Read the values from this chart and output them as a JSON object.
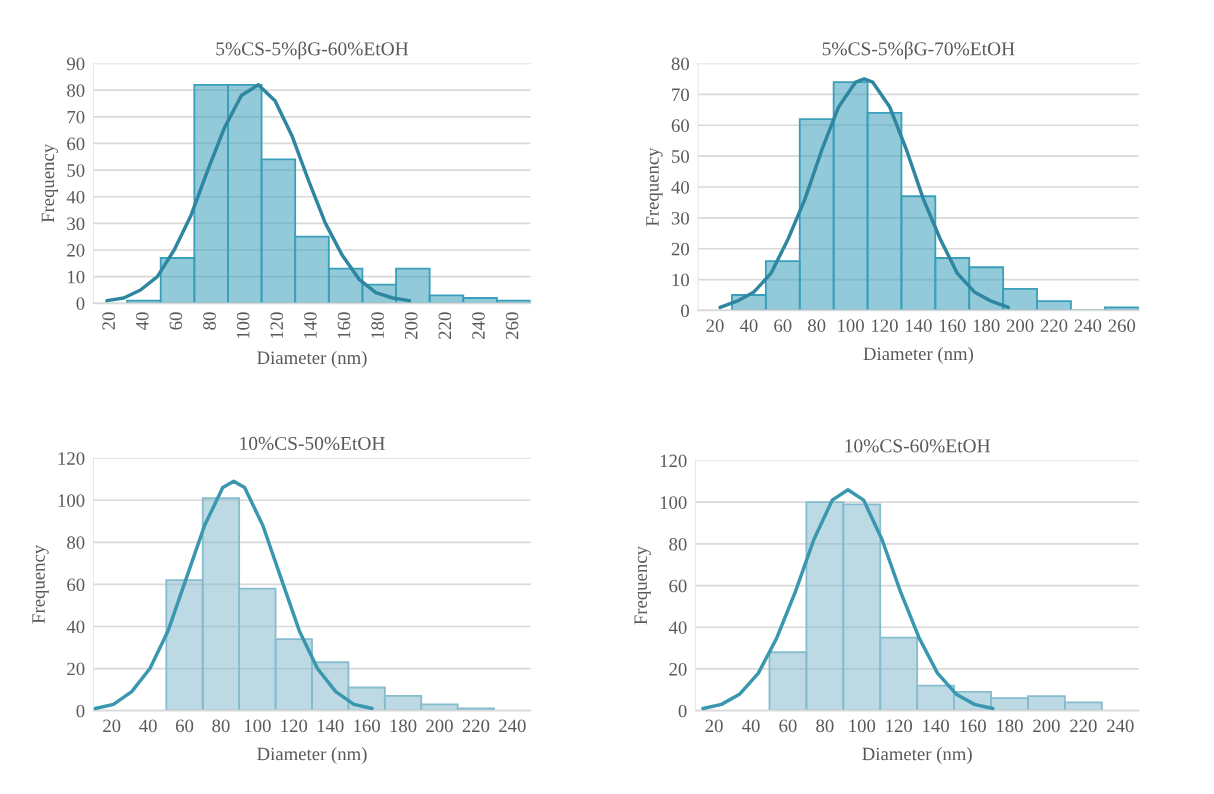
{
  "chart_data": [
    {
      "type": "histogram",
      "title": "5%CS-5%βG-60%EtOH",
      "xlabel": "Diameter (nm)",
      "ylabel": "Frequency",
      "xlim": [
        10,
        270
      ],
      "xticks": [
        20,
        40,
        60,
        80,
        100,
        120,
        140,
        160,
        180,
        200,
        220,
        240,
        260
      ],
      "ylim": [
        0,
        90
      ],
      "yticks": [
        0,
        10,
        20,
        30,
        40,
        50,
        60,
        70,
        80,
        90
      ],
      "grid": "y",
      "series": [
        {
          "color": "#3a9fba",
          "bins": [
            30,
            50,
            70,
            90,
            110,
            130,
            150,
            170,
            190,
            210,
            230,
            250,
            270
          ],
          "values": [
            1,
            17,
            82,
            82,
            54,
            25,
            13,
            7,
            13,
            3,
            2,
            1
          ]
        },
        {
          "type": "line",
          "color": "#2e86a0",
          "x": [
            18,
            28,
            38,
            48,
            58,
            68,
            78,
            88,
            98,
            108,
            118,
            128,
            138,
            148,
            158,
            168,
            178,
            188,
            198
          ],
          "values": [
            1,
            2,
            5,
            10,
            20,
            33,
            50,
            66,
            78,
            82,
            76,
            63,
            46,
            30,
            18,
            9,
            4,
            2,
            1
          ]
        }
      ]
    },
    {
      "type": "histogram",
      "title": "5%CS-5%βG-70%EtOH",
      "xlabel": "Diameter (nm)",
      "ylabel": "Frequency",
      "xlim": [
        10,
        270
      ],
      "xticks": [
        20,
        40,
        60,
        80,
        100,
        120,
        140,
        160,
        180,
        200,
        220,
        240,
        260
      ],
      "ylim": [
        0,
        80
      ],
      "yticks": [
        0,
        10,
        20,
        30,
        40,
        50,
        60,
        70,
        80
      ],
      "grid": "y",
      "series": [
        {
          "color": "#3a9fba",
          "bins": [
            30,
            50,
            70,
            90,
            110,
            130,
            150,
            170,
            190,
            210,
            230,
            250,
            270
          ],
          "values": [
            5,
            16,
            62,
            74,
            64,
            37,
            17,
            14,
            7,
            3,
            0,
            1
          ]
        },
        {
          "type": "line",
          "color": "#2e86a0",
          "x": [
            23,
            33,
            43,
            53,
            63,
            73,
            83,
            93,
            103,
            108,
            113,
            123,
            133,
            143,
            153,
            163,
            173,
            183,
            193
          ],
          "values": [
            1,
            3,
            6,
            12,
            23,
            36,
            52,
            66,
            74,
            75,
            74,
            66,
            52,
            36,
            23,
            12,
            6,
            3,
            1
          ]
        }
      ]
    },
    {
      "type": "histogram",
      "title": "10%CS-50%EtOH",
      "xlabel": "Diameter (nm)",
      "ylabel": "Frequency",
      "xlim": [
        10,
        250
      ],
      "xticks": [
        20,
        40,
        60,
        80,
        100,
        120,
        140,
        160,
        180,
        200,
        220,
        240
      ],
      "ylim": [
        0,
        120
      ],
      "yticks": [
        0,
        20,
        40,
        60,
        80,
        100,
        120
      ],
      "grid": "y",
      "series": [
        {
          "color": "#86bccd",
          "bins": [
            50,
            70,
            90,
            110,
            130,
            150,
            170,
            190,
            210,
            230
          ],
          "values": [
            62,
            101,
            58,
            34,
            23,
            11,
            7,
            3,
            1
          ]
        },
        {
          "type": "line",
          "color": "#3a97b0",
          "x": [
            11,
            21,
            31,
            41,
            51,
            61,
            71,
            81,
            87,
            93,
            103,
            113,
            123,
            133,
            143,
            153,
            163
          ],
          "values": [
            1,
            3,
            9,
            20,
            38,
            63,
            88,
            106,
            109,
            106,
            88,
            63,
            38,
            20,
            9,
            3,
            1
          ]
        }
      ]
    },
    {
      "type": "histogram",
      "title": "10%CS-60%EtOH",
      "xlabel": "Diameter (nm)",
      "ylabel": "Frequency",
      "xlim": [
        10,
        250
      ],
      "xticks": [
        20,
        40,
        60,
        80,
        100,
        120,
        140,
        160,
        180,
        200,
        220,
        240
      ],
      "ylim": [
        0,
        120
      ],
      "yticks": [
        0,
        20,
        40,
        60,
        80,
        100,
        120
      ],
      "grid": "y",
      "series": [
        {
          "color": "#86bccd",
          "bins": [
            50,
            70,
            90,
            110,
            130,
            150,
            170,
            190,
            210,
            230
          ],
          "values": [
            28,
            100,
            99,
            35,
            12,
            9,
            6,
            7,
            4
          ]
        },
        {
          "type": "line",
          "color": "#3a97b0",
          "x": [
            14,
            24,
            34,
            44,
            54,
            64,
            74,
            84,
            92.5,
            101,
            111,
            121,
            131,
            141,
            151,
            161,
            171
          ],
          "values": [
            1,
            3,
            8,
            18,
            35,
            57,
            82,
            101,
            106,
            101,
            82,
            57,
            35,
            18,
            8,
            3,
            1
          ]
        }
      ]
    }
  ]
}
